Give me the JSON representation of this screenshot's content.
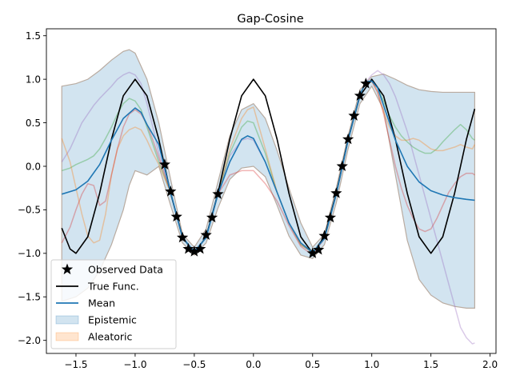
{
  "chart_data": {
    "type": "line",
    "title": "Gap-Cosine",
    "xlabel": "",
    "ylabel": "",
    "xlim": [
      -1.75,
      2.05
    ],
    "ylim": [
      -2.15,
      1.58
    ],
    "xticks": [
      -1.5,
      -1.0,
      -0.5,
      0.0,
      0.5,
      1.0,
      1.5,
      2.0
    ],
    "xtick_labels": [
      "−1.5",
      "−1.0",
      "−0.5",
      "0.0",
      "0.5",
      "1.0",
      "1.5",
      "2.0"
    ],
    "yticks": [
      1.5,
      1.0,
      0.5,
      0.0,
      -0.5,
      -1.0,
      -1.5,
      -2.0
    ],
    "ytick_labels": [
      "1.5",
      "1.0",
      "0.5",
      "0.0",
      "−0.5",
      "−1.0",
      "−1.5",
      "−2.0"
    ],
    "grid": false,
    "legend_position": "lower-left",
    "legend": [
      {
        "label": "Observed Data",
        "kind": "star",
        "color": "#000000"
      },
      {
        "label": "True Func.",
        "kind": "line",
        "color": "#000000"
      },
      {
        "label": "Mean",
        "kind": "line",
        "color": "#1f77b4"
      },
      {
        "label": "Epistemic",
        "kind": "patch",
        "color": "#1f77b4"
      },
      {
        "label": "Aleatoric",
        "kind": "patch",
        "color": "#ff7f0e"
      }
    ],
    "observed_data": {
      "x": [
        -0.75,
        -0.7,
        -0.65,
        -0.6,
        -0.55,
        -0.5,
        -0.45,
        -0.4,
        -0.35,
        -0.3,
        0.5,
        0.55,
        0.6,
        0.65,
        0.7,
        0.75,
        0.8,
        0.85,
        0.9,
        0.95
      ],
      "y": [
        0.02,
        -0.29,
        -0.58,
        -0.82,
        -0.95,
        -0.98,
        -0.95,
        -0.79,
        -0.59,
        -0.32,
        -1.0,
        -0.96,
        -0.8,
        -0.59,
        -0.31,
        0.0,
        0.31,
        0.58,
        0.81,
        0.95
      ]
    },
    "true_function": {
      "x": [
        -1.62,
        -1.55,
        -1.5,
        -1.4,
        -1.3,
        -1.2,
        -1.1,
        -1.0,
        -0.9,
        -0.8,
        -0.7,
        -0.6,
        -0.5,
        -0.4,
        -0.3,
        -0.2,
        -0.1,
        0.0,
        0.1,
        0.2,
        0.3,
        0.4,
        0.5,
        0.6,
        0.7,
        0.8,
        0.9,
        1.0,
        1.1,
        1.2,
        1.3,
        1.4,
        1.5,
        1.6,
        1.7,
        1.8,
        1.87
      ],
      "y": [
        -0.71,
        -0.95,
        -1.0,
        -0.81,
        -0.31,
        0.31,
        0.81,
        1.0,
        0.81,
        0.31,
        -0.31,
        -0.81,
        -1.0,
        -0.81,
        -0.31,
        0.31,
        0.81,
        1.0,
        0.81,
        0.31,
        -0.31,
        -0.81,
        -1.0,
        -0.81,
        -0.31,
        0.31,
        0.81,
        1.0,
        0.81,
        0.31,
        -0.31,
        -0.81,
        -1.0,
        -0.81,
        -0.31,
        0.31,
        0.66
      ]
    },
    "mean": {
      "x": [
        -1.62,
        -1.5,
        -1.4,
        -1.3,
        -1.2,
        -1.1,
        -1.0,
        -0.95,
        -0.9,
        -0.8,
        -0.7,
        -0.6,
        -0.5,
        -0.4,
        -0.3,
        -0.2,
        -0.1,
        -0.05,
        0.0,
        0.1,
        0.2,
        0.3,
        0.4,
        0.5,
        0.6,
        0.7,
        0.8,
        0.9,
        0.95,
        1.0,
        1.05,
        1.1,
        1.2,
        1.3,
        1.4,
        1.5,
        1.6,
        1.7,
        1.8,
        1.87
      ],
      "y": [
        -0.32,
        -0.27,
        -0.17,
        0.02,
        0.3,
        0.55,
        0.67,
        0.62,
        0.48,
        0.25,
        -0.3,
        -0.82,
        -0.98,
        -0.82,
        -0.32,
        0.05,
        0.31,
        0.35,
        0.32,
        0.05,
        -0.3,
        -0.65,
        -0.88,
        -0.99,
        -0.83,
        -0.32,
        0.3,
        0.82,
        0.97,
        0.98,
        0.9,
        0.7,
        0.3,
        0.0,
        -0.18,
        -0.28,
        -0.33,
        -0.36,
        -0.38,
        -0.39
      ]
    },
    "epistemic_band": {
      "x": [
        -1.62,
        -1.5,
        -1.4,
        -1.3,
        -1.2,
        -1.1,
        -1.05,
        -1.0,
        -0.9,
        -0.8,
        -0.7,
        -0.6,
        -0.5,
        -0.4,
        -0.3,
        -0.2,
        -0.1,
        0.0,
        0.1,
        0.2,
        0.3,
        0.4,
        0.5,
        0.6,
        0.7,
        0.8,
        0.9,
        1.0,
        1.1,
        1.2,
        1.3,
        1.4,
        1.5,
        1.6,
        1.7,
        1.8,
        1.87
      ],
      "upper": [
        0.92,
        0.95,
        1.0,
        1.1,
        1.22,
        1.32,
        1.34,
        1.3,
        1.0,
        0.5,
        -0.15,
        -0.78,
        -0.93,
        -0.72,
        -0.18,
        0.35,
        0.65,
        0.72,
        0.55,
        0.18,
        -0.25,
        -0.65,
        -0.93,
        -0.78,
        -0.25,
        0.35,
        0.88,
        1.03,
        1.06,
        1.0,
        0.93,
        0.88,
        0.86,
        0.85,
        0.85,
        0.85,
        0.85
      ],
      "lower": [
        -1.55,
        -1.5,
        -1.4,
        -1.2,
        -0.9,
        -0.5,
        -0.22,
        -0.05,
        -0.1,
        0.0,
        -0.45,
        -0.88,
        -1.02,
        -0.88,
        -0.48,
        -0.15,
        -0.02,
        0.0,
        -0.12,
        -0.45,
        -0.8,
        -1.02,
        -1.06,
        -0.9,
        -0.42,
        0.2,
        0.72,
        0.92,
        0.65,
        -0.1,
        -0.85,
        -1.3,
        -1.48,
        -1.57,
        -1.61,
        -1.63,
        -1.63
      ]
    },
    "samples": [
      {
        "color": "#9467bd",
        "x": [
          -1.62,
          -1.55,
          -1.5,
          -1.45,
          -1.4,
          -1.35,
          -1.3,
          -1.25,
          -1.2,
          -1.15,
          -1.1,
          -1.05,
          -1.0,
          -0.95,
          -0.9,
          -0.85,
          -0.8,
          -0.7,
          -0.6,
          -0.5,
          -0.4,
          -0.3,
          -0.2,
          -0.1,
          -0.05,
          0.0,
          0.1,
          0.2,
          0.3,
          0.4,
          0.5,
          0.6,
          0.7,
          0.8,
          0.9,
          0.95,
          1.0,
          1.05,
          1.1,
          1.15,
          1.2,
          1.25,
          1.3,
          1.35,
          1.4,
          1.45,
          1.5,
          1.55,
          1.6,
          1.65,
          1.7,
          1.75,
          1.8,
          1.85,
          1.87
        ],
        "y": [
          0.05,
          0.2,
          0.35,
          0.5,
          0.6,
          0.7,
          0.78,
          0.85,
          0.92,
          1.0,
          1.05,
          1.08,
          1.05,
          0.95,
          0.72,
          0.45,
          0.15,
          -0.3,
          -0.82,
          -0.98,
          -0.82,
          -0.32,
          0.12,
          0.3,
          0.32,
          0.3,
          0.05,
          -0.3,
          -0.65,
          -0.9,
          -0.99,
          -0.83,
          -0.32,
          0.3,
          0.82,
          0.97,
          1.05,
          1.1,
          1.05,
          0.95,
          0.8,
          0.6,
          0.4,
          0.15,
          -0.1,
          -0.35,
          -0.6,
          -0.85,
          -1.1,
          -1.35,
          -1.6,
          -1.85,
          -1.97,
          -2.04,
          -2.03
        ]
      },
      {
        "color": "#2ca02c",
        "x": [
          -1.62,
          -1.55,
          -1.5,
          -1.45,
          -1.4,
          -1.35,
          -1.3,
          -1.25,
          -1.2,
          -1.15,
          -1.1,
          -1.05,
          -1.0,
          -0.95,
          -0.9,
          -0.85,
          -0.8,
          -0.7,
          -0.6,
          -0.5,
          -0.4,
          -0.3,
          -0.2,
          -0.1,
          -0.05,
          0.0,
          0.1,
          0.2,
          0.3,
          0.4,
          0.5,
          0.6,
          0.7,
          0.8,
          0.9,
          0.95,
          1.0,
          1.05,
          1.1,
          1.15,
          1.2,
          1.25,
          1.3,
          1.35,
          1.4,
          1.45,
          1.5,
          1.55,
          1.6,
          1.65,
          1.7,
          1.75,
          1.8,
          1.85,
          1.87
        ],
        "y": [
          -0.05,
          -0.02,
          0.02,
          0.05,
          0.08,
          0.12,
          0.2,
          0.32,
          0.45,
          0.6,
          0.72,
          0.78,
          0.75,
          0.65,
          0.45,
          0.25,
          0.05,
          -0.3,
          -0.82,
          -0.98,
          -0.82,
          -0.32,
          0.15,
          0.45,
          0.52,
          0.5,
          0.15,
          -0.3,
          -0.65,
          -0.9,
          -0.99,
          -0.83,
          -0.32,
          0.3,
          0.82,
          0.97,
          0.98,
          0.9,
          0.75,
          0.58,
          0.45,
          0.35,
          0.28,
          0.22,
          0.18,
          0.15,
          0.15,
          0.2,
          0.28,
          0.35,
          0.42,
          0.48,
          0.42,
          0.32,
          0.3
        ]
      },
      {
        "color": "#ff7f0e",
        "x": [
          -1.62,
          -1.55,
          -1.5,
          -1.45,
          -1.4,
          -1.35,
          -1.3,
          -1.25,
          -1.2,
          -1.15,
          -1.1,
          -1.05,
          -1.0,
          -0.95,
          -0.9,
          -0.85,
          -0.8,
          -0.7,
          -0.6,
          -0.5,
          -0.4,
          -0.3,
          -0.2,
          -0.1,
          -0.05,
          0.0,
          0.1,
          0.2,
          0.3,
          0.4,
          0.5,
          0.6,
          0.7,
          0.8,
          0.9,
          0.95,
          1.0,
          1.05,
          1.1,
          1.15,
          1.2,
          1.25,
          1.3,
          1.35,
          1.4,
          1.45,
          1.5,
          1.55,
          1.6,
          1.65,
          1.7,
          1.75,
          1.8,
          1.85,
          1.87
        ],
        "y": [
          0.32,
          0.05,
          -0.25,
          -0.55,
          -0.8,
          -0.88,
          -0.85,
          -0.55,
          -0.1,
          0.2,
          0.35,
          0.42,
          0.45,
          0.42,
          0.3,
          0.15,
          0.02,
          -0.3,
          -0.82,
          -0.98,
          -0.82,
          -0.32,
          0.2,
          0.55,
          0.65,
          0.68,
          0.2,
          -0.3,
          -0.65,
          -0.9,
          -0.99,
          -0.83,
          -0.32,
          0.3,
          0.82,
          0.97,
          0.98,
          0.85,
          0.62,
          0.45,
          0.35,
          0.3,
          0.3,
          0.32,
          0.3,
          0.25,
          0.2,
          0.18,
          0.18,
          0.2,
          0.22,
          0.25,
          0.22,
          0.2,
          0.25
        ]
      },
      {
        "color": "#d62728",
        "x": [
          -1.62,
          -1.55,
          -1.5,
          -1.45,
          -1.4,
          -1.35,
          -1.3,
          -1.25,
          -1.2,
          -1.15,
          -1.1,
          -1.05,
          -1.0,
          -0.95,
          -0.9,
          -0.85,
          -0.8,
          -0.7,
          -0.6,
          -0.5,
          -0.4,
          -0.3,
          -0.2,
          -0.1,
          -0.05,
          0.0,
          0.1,
          0.2,
          0.3,
          0.4,
          0.5,
          0.6,
          0.7,
          0.8,
          0.9,
          0.95,
          1.0,
          1.05,
          1.1,
          1.15,
          1.2,
          1.25,
          1.3,
          1.35,
          1.4,
          1.45,
          1.5,
          1.55,
          1.6,
          1.65,
          1.7,
          1.75,
          1.8,
          1.85,
          1.87
        ],
        "y": [
          -0.88,
          -0.7,
          -0.5,
          -0.32,
          -0.2,
          -0.22,
          -0.45,
          -0.4,
          -0.1,
          0.2,
          0.45,
          0.6,
          0.65,
          0.6,
          0.48,
          0.3,
          0.1,
          -0.3,
          -0.82,
          -0.98,
          -0.82,
          -0.32,
          -0.1,
          -0.05,
          -0.05,
          -0.05,
          -0.2,
          -0.4,
          -0.68,
          -0.92,
          -1.02,
          -0.83,
          -0.32,
          0.3,
          0.82,
          0.97,
          0.98,
          0.85,
          0.6,
          0.3,
          0.0,
          -0.25,
          -0.45,
          -0.6,
          -0.72,
          -0.75,
          -0.72,
          -0.6,
          -0.45,
          -0.3,
          -0.2,
          -0.12,
          -0.08,
          -0.08,
          -0.1
        ]
      }
    ]
  }
}
